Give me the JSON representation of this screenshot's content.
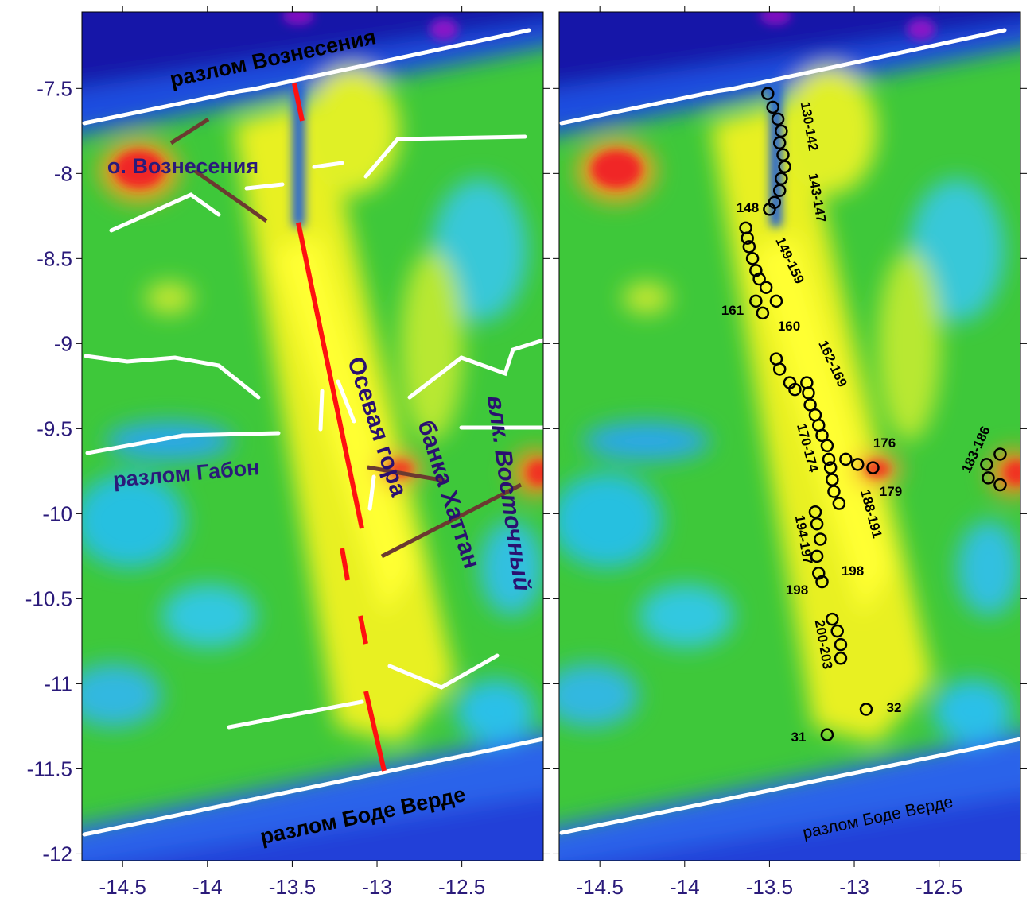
{
  "axes": {
    "xlim": [
      -14.74,
      -12.02
    ],
    "ylim": [
      -12.04,
      -7.05
    ],
    "xticks": [
      -14.5,
      -14,
      -13.5,
      -13,
      -12.5
    ],
    "yticks": [
      -7.5,
      -8,
      -8.5,
      -9,
      -9.5,
      -10,
      -10.5,
      -11,
      -11.5,
      -12
    ]
  },
  "left_panel": {
    "labels": [
      "разлом Вознесения",
      "о. Вознесения",
      "разлом Габон",
      "Осевая гора",
      "банка Хаттан",
      "влк. Восточный",
      "разлом Боде Верде"
    ]
  },
  "right_panel": {
    "labels": [
      "130-142",
      "143-147",
      "148",
      "149-159",
      "161",
      "160",
      "162-169",
      "170-174",
      "176",
      "179",
      "188-191",
      "183-186",
      "194-197",
      "198",
      "198",
      "200-203",
      "31",
      "32",
      "разлом Боде Верде"
    ],
    "stations": {
      "x": [
        -13.51,
        -13.48,
        -13.45,
        -13.43,
        -13.44,
        -13.42,
        -13.41,
        -13.43,
        -13.44,
        -13.47,
        -13.5,
        -13.64,
        -13.63,
        -13.62,
        -13.6,
        -13.58,
        -13.56,
        -13.52,
        -13.46,
        -13.54,
        -13.58,
        -13.46,
        -13.44,
        -13.38,
        -13.35,
        -13.28,
        -13.27,
        -13.26,
        -13.23,
        -13.21,
        -13.19,
        -13.16,
        -13.15,
        -13.14,
        -13.13,
        -13.12,
        -13.09,
        -13.05,
        -12.98,
        -12.89,
        -12.22,
        -12.14,
        -12.21,
        -12.14,
        -13.23,
        -13.22,
        -13.2,
        -13.22,
        -13.21,
        -13.19,
        -13.13,
        -13.1,
        -13.08,
        -13.08,
        -13.16,
        -12.93
      ],
      "y": [
        -7.53,
        -7.61,
        -7.68,
        -7.75,
        -7.82,
        -7.89,
        -7.96,
        -8.03,
        -8.1,
        -8.17,
        -8.21,
        -8.32,
        -8.38,
        -8.43,
        -8.5,
        -8.57,
        -8.62,
        -8.67,
        -8.75,
        -8.82,
        -8.75,
        -9.09,
        -9.15,
        -9.23,
        -9.27,
        -9.23,
        -9.29,
        -9.36,
        -9.42,
        -9.48,
        -9.54,
        -9.6,
        -9.68,
        -9.73,
        -9.8,
        -9.87,
        -9.94,
        -9.68,
        -9.71,
        -9.73,
        -9.71,
        -9.65,
        -9.79,
        -9.83,
        -9.99,
        -10.06,
        -10.15,
        -10.25,
        -10.35,
        -10.4,
        -10.62,
        -10.69,
        -10.77,
        -10.85,
        -11.3,
        -11.15
      ]
    }
  }
}
